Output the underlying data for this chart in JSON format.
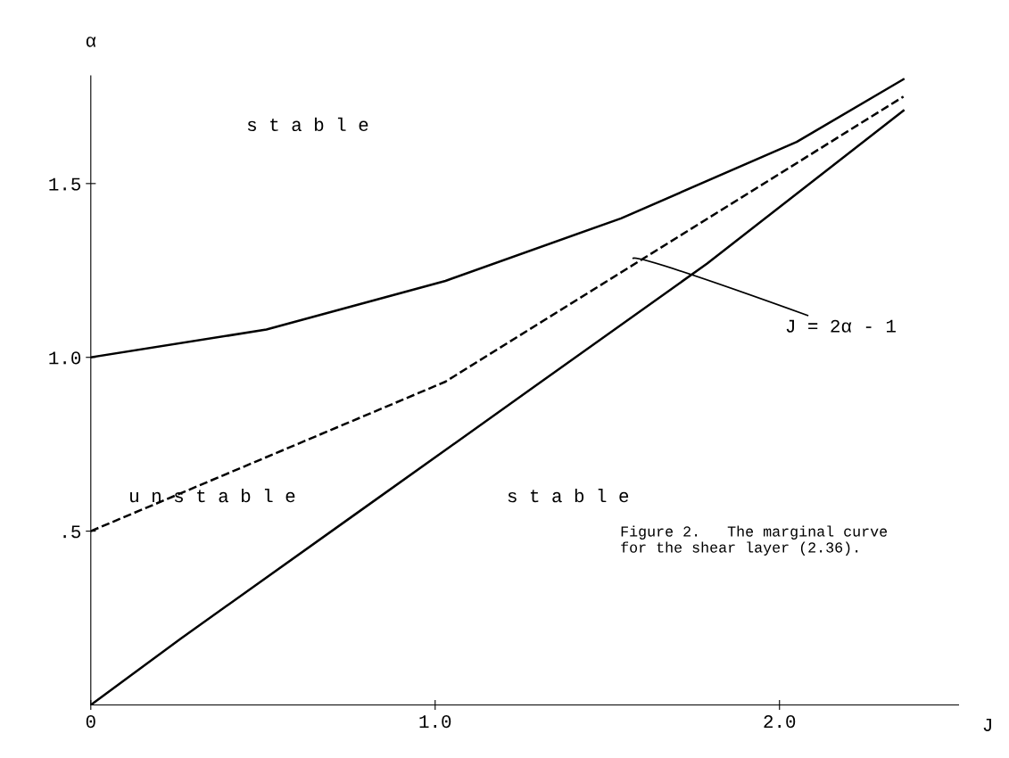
{
  "chart_data": {
    "type": "line",
    "xlabel": "J",
    "ylabel": "α",
    "xlim": [
      0,
      2.52
    ],
    "ylim": [
      0,
      1.81
    ],
    "xticks": [
      {
        "value": 0,
        "label": "0"
      },
      {
        "value": 1,
        "label": "1.0"
      },
      {
        "value": 2,
        "label": "2.0"
      }
    ],
    "yticks": [
      {
        "value": 0.5,
        "label": ".5"
      },
      {
        "value": 1,
        "label": "1.0"
      },
      1.5
    ],
    "grid": false,
    "legend": false,
    "marker": "none",
    "series": [
      {
        "color": "#000000",
        "line_style": "solid",
        "x": [
          0,
          0.51,
          1.03,
          1.54,
          2.05,
          2.36
        ],
        "values": [
          1.0,
          1.08,
          1.22,
          1.4,
          1.62,
          1.8
        ]
      },
      {
        "color": "#000000",
        "line_style": "dashed",
        "x": [
          0,
          1.03,
          2.36
        ],
        "values": [
          0.5,
          0.93,
          1.75
        ]
      },
      {
        "color": "#000000",
        "line_style": "solid",
        "x": [
          0,
          0.26,
          0.77,
          1.28,
          1.79,
          2.36
        ],
        "values": [
          0,
          0.19,
          0.55,
          0.91,
          1.27,
          1.71
        ]
      }
    ],
    "annotations": [
      "s t a b l e",
      "u n s t a b l e",
      "s t a b l e",
      "J = 2α - 1",
      "Figure 2.   The marginal curve\nfor the shear layer (2.36)."
    ]
  }
}
